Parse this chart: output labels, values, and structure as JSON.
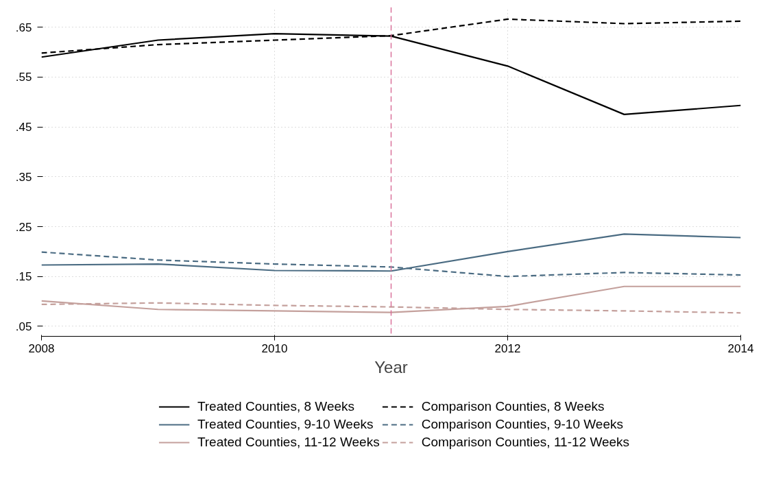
{
  "chart_data": {
    "type": "line",
    "xlabel": "Year",
    "x": [
      2008,
      2009,
      2010,
      2011,
      2012,
      2013,
      2014
    ],
    "series": [
      {
        "name": "Treated Counties, 8 Weeks",
        "color": "#000000",
        "line_style": "solid",
        "values": [
          0.59,
          0.624,
          0.637,
          0.632,
          0.572,
          0.475,
          0.493
        ]
      },
      {
        "name": "Comparison Counties, 8 Weeks",
        "color": "#000000",
        "line_style": "dashed",
        "values": [
          0.598,
          0.615,
          0.624,
          0.633,
          0.666,
          0.657,
          0.662
        ]
      },
      {
        "name": "Treated Counties, 9-10 Weeks",
        "color": "#4a6b82",
        "line_style": "solid",
        "values": [
          0.173,
          0.175,
          0.162,
          0.161,
          0.2,
          0.235,
          0.228
        ]
      },
      {
        "name": "Comparison Counties, 9-10 Weeks",
        "color": "#4a6b82",
        "line_style": "dashed",
        "values": [
          0.199,
          0.183,
          0.175,
          0.169,
          0.15,
          0.158,
          0.153
        ]
      },
      {
        "name": "Treated Counties, 11-12 Weeks",
        "color": "#c4a09c",
        "line_style": "solid",
        "values": [
          0.101,
          0.084,
          0.081,
          0.078,
          0.09,
          0.13,
          0.13
        ]
      },
      {
        "name": "Comparison Counties, 11-12 Weeks",
        "color": "#c4a09c",
        "line_style": "dashed",
        "values": [
          0.094,
          0.097,
          0.092,
          0.089,
          0.084,
          0.081,
          0.077
        ]
      }
    ],
    "xlim": [
      2008,
      2014
    ],
    "xticks": [
      2008,
      2010,
      2012,
      2014
    ],
    "ylim": [
      0.03,
      0.69
    ],
    "yticks": [
      {
        "value": 0.05,
        "label": ".05"
      },
      {
        "value": 0.15,
        "label": ".15"
      },
      {
        "value": 0.25,
        "label": ".25"
      },
      {
        "value": 0.35,
        "label": ".35"
      },
      {
        "value": 0.45,
        "label": ".45"
      },
      {
        "value": 0.55,
        "label": ".55"
      },
      {
        "value": 0.65,
        "label": ".65"
      }
    ],
    "ref_lines": [
      {
        "axis": "x",
        "value": 2011,
        "label": null,
        "color": "#d9709a",
        "line_style": "dashed"
      }
    ],
    "grid": true,
    "legend": "bottom",
    "marker": "none"
  }
}
